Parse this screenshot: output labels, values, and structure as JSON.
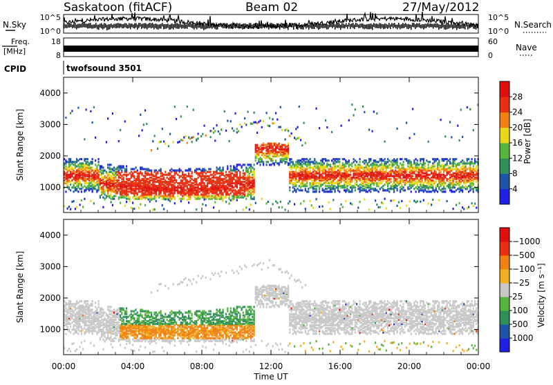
{
  "header": {
    "station": "Saskatoon (fitACF)",
    "beam": "Beam 02",
    "date": "27/May/2012"
  },
  "nsky_panel": {
    "left_label": "N.Sky",
    "right_label": "N.Search",
    "left_ticks": [
      "10^5",
      "10^0"
    ],
    "right_ticks": [
      "10^5",
      "10^0"
    ]
  },
  "freq_panel": {
    "left_label_1": "Freq.",
    "left_label_2": "[MHz]",
    "left_ticks": [
      "18",
      "8"
    ],
    "right_label": "Nave",
    "right_ticks": [
      "60",
      "0"
    ]
  },
  "cpid_panel": {
    "label": "CPID",
    "value": "twofsound 3501"
  },
  "chart_data": [
    {
      "type": "heatmap",
      "name": "power",
      "ylabel": "Slant Range [km]",
      "ylim": [
        200,
        4500
      ],
      "yticks": [
        "1000",
        "2000",
        "3000",
        "4000"
      ],
      "colorbar_label": "Power [dB]",
      "colorbar_ticks": [
        "4",
        "8",
        "12",
        "16",
        "20",
        "24",
        "28"
      ],
      "colors": [
        "#1f1fe6",
        "#1f55a8",
        "#2f8f58",
        "#56b53c",
        "#e8d818",
        "#f08010",
        "#e83010",
        "#e01010"
      ],
      "range_min": 0,
      "range_max": 32
    },
    {
      "type": "heatmap",
      "name": "velocity",
      "ylabel": "Slant Range [km]",
      "ylim": [
        200,
        4500
      ],
      "yticks": [
        "1000",
        "2000",
        "3000",
        "4000"
      ],
      "colorbar_label": "Velocity [m s⁻¹]",
      "colorbar_ticks": [
        "1000",
        "500",
        "100",
        "25",
        "−25",
        "−100",
        "−500",
        "−1000"
      ],
      "colors": [
        "#1f1fe6",
        "#1f55a8",
        "#2f8f58",
        "#56b53c",
        "#c8c8c8",
        "#f0b020",
        "#f08010",
        "#e83010",
        "#e01010"
      ]
    }
  ],
  "xaxis": {
    "label": "Time UT",
    "ticks": [
      "00:00",
      "04:00",
      "08:00",
      "12:00",
      "16:00",
      "20:00",
      "00:00"
    ],
    "range_hours": [
      0,
      24
    ]
  }
}
